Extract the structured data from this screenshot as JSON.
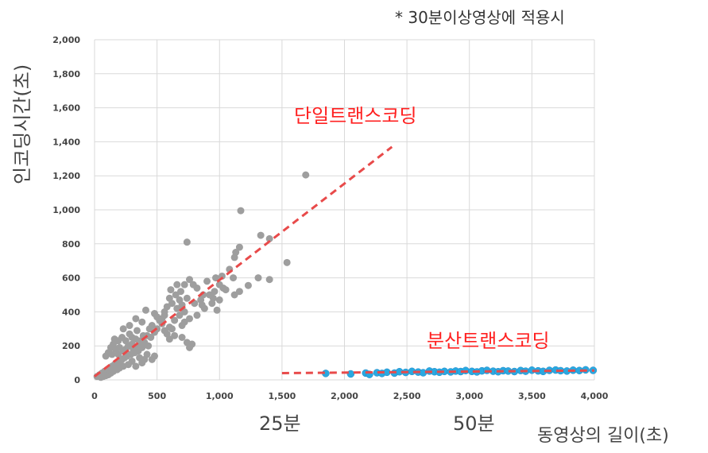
{
  "note": "* 30분이상영상에 적용시",
  "chart_data": {
    "type": "scatter",
    "ylabel": "인코딩시간(초)",
    "xlabel": "동영상의 길이(초)",
    "xlim": [
      0,
      4000
    ],
    "ylim": [
      0,
      2000
    ],
    "x_ticks": [
      "0",
      "500",
      "1,000",
      "1,500",
      "2,000",
      "2,500",
      "3,000",
      "3,500",
      "4,000"
    ],
    "y_ticks": [
      "0",
      "200",
      "400",
      "600",
      "800",
      "1,000",
      "1,200",
      "1,400",
      "1,600",
      "1,800",
      "2,000"
    ],
    "grid": true,
    "duration_markers": [
      {
        "label": "25분",
        "x": 1500
      },
      {
        "label": "50분",
        "x": 3000
      }
    ],
    "series": [
      {
        "name": "단일트랜스코딩",
        "color": "#9e9e9e",
        "points": [
          [
            1690,
            1205
          ],
          [
            1170,
            995
          ],
          [
            740,
            810
          ],
          [
            1330,
            850
          ],
          [
            1400,
            830
          ],
          [
            1130,
            750
          ],
          [
            1120,
            720
          ],
          [
            1160,
            780
          ],
          [
            1540,
            690
          ],
          [
            1080,
            650
          ],
          [
            1020,
            610
          ],
          [
            1110,
            600
          ],
          [
            1310,
            600
          ],
          [
            1400,
            590
          ],
          [
            1050,
            530
          ],
          [
            1230,
            555
          ],
          [
            1160,
            520
          ],
          [
            1120,
            500
          ],
          [
            970,
            600
          ],
          [
            760,
            590
          ],
          [
            790,
            560
          ],
          [
            900,
            580
          ],
          [
            820,
            540
          ],
          [
            870,
            500
          ],
          [
            960,
            520
          ],
          [
            740,
            480
          ],
          [
            680,
            470
          ],
          [
            650,
            500
          ],
          [
            600,
            480
          ],
          [
            620,
            450
          ],
          [
            580,
            430
          ],
          [
            560,
            400
          ],
          [
            410,
            410
          ],
          [
            480,
            390
          ],
          [
            500,
            370
          ],
          [
            520,
            350
          ],
          [
            540,
            330
          ],
          [
            600,
            310
          ],
          [
            620,
            300
          ],
          [
            700,
            320
          ],
          [
            720,
            340
          ],
          [
            760,
            360
          ],
          [
            820,
            380
          ],
          [
            880,
            420
          ],
          [
            940,
            450
          ],
          [
            1000,
            470
          ],
          [
            600,
            240
          ],
          [
            640,
            260
          ],
          [
            700,
            250
          ],
          [
            740,
            220
          ],
          [
            780,
            210
          ],
          [
            760,
            190
          ],
          [
            340,
            290
          ],
          [
            280,
            270
          ],
          [
            300,
            250
          ],
          [
            330,
            240
          ],
          [
            370,
            230
          ],
          [
            400,
            220
          ],
          [
            420,
            260
          ],
          [
            440,
            300
          ],
          [
            460,
            320
          ],
          [
            480,
            280
          ],
          [
            430,
            200
          ],
          [
            380,
            190
          ],
          [
            350,
            170
          ],
          [
            320,
            160
          ],
          [
            290,
            150
          ],
          [
            260,
            140
          ],
          [
            240,
            130
          ],
          [
            220,
            120
          ],
          [
            200,
            110
          ],
          [
            180,
            100
          ],
          [
            160,
            90
          ],
          [
            140,
            80
          ],
          [
            120,
            70
          ],
          [
            100,
            60
          ],
          [
            80,
            50
          ],
          [
            60,
            40
          ],
          [
            40,
            30
          ],
          [
            20,
            20
          ],
          [
            250,
            180
          ],
          [
            270,
            200
          ],
          [
            300,
            210
          ],
          [
            200,
            190
          ],
          [
            170,
            180
          ],
          [
            150,
            210
          ],
          [
            130,
            190
          ],
          [
            110,
            160
          ],
          [
            90,
            140
          ],
          [
            140,
            150
          ],
          [
            190,
            150
          ],
          [
            230,
            170
          ],
          [
            310,
            180
          ],
          [
            350,
            200
          ],
          [
            390,
            260
          ],
          [
            450,
            250
          ],
          [
            500,
            300
          ],
          [
            540,
            360
          ],
          [
            560,
            380
          ],
          [
            660,
            420
          ],
          [
            700,
            440
          ],
          [
            720,
            400
          ],
          [
            800,
            450
          ],
          [
            850,
            470
          ],
          [
            920,
            500
          ],
          [
            950,
            480
          ],
          [
            1000,
            560
          ],
          [
            1030,
            540
          ],
          [
            480,
            140
          ],
          [
            460,
            120
          ],
          [
            400,
            120
          ],
          [
            360,
            130
          ],
          [
            300,
            110
          ],
          [
            270,
            90
          ],
          [
            230,
            80
          ],
          [
            200,
            70
          ],
          [
            180,
            60
          ],
          [
            150,
            50
          ],
          [
            130,
            40
          ],
          [
            110,
            30
          ],
          [
            90,
            25
          ],
          [
            70,
            20
          ],
          [
            50,
            15
          ],
          [
            330,
            80
          ],
          [
            380,
            100
          ],
          [
            420,
            150
          ],
          [
            560,
            290
          ],
          [
            580,
            270
          ],
          [
            640,
            350
          ],
          [
            680,
            380
          ],
          [
            250,
            230
          ],
          [
            220,
            250
          ],
          [
            190,
            230
          ],
          [
            160,
            240
          ],
          [
            280,
            320
          ],
          [
            230,
            300
          ],
          [
            330,
            360
          ],
          [
            380,
            340
          ],
          [
            860,
            440
          ],
          [
            980,
            410
          ],
          [
            660,
            560
          ],
          [
            720,
            560
          ],
          [
            610,
            530
          ],
          [
            690,
            520
          ]
        ]
      },
      {
        "name": "분산트랜스코딩",
        "color": "#2aa8e0",
        "points": [
          [
            1850,
            38
          ],
          [
            2050,
            35
          ],
          [
            2170,
            40
          ],
          [
            2200,
            32
          ],
          [
            2260,
            42
          ],
          [
            2300,
            38
          ],
          [
            2340,
            45
          ],
          [
            2400,
            40
          ],
          [
            2440,
            48
          ],
          [
            2490,
            44
          ],
          [
            2540,
            50
          ],
          [
            2590,
            46
          ],
          [
            2630,
            42
          ],
          [
            2680,
            52
          ],
          [
            2720,
            48
          ],
          [
            2760,
            45
          ],
          [
            2800,
            50
          ],
          [
            2850,
            47
          ],
          [
            2890,
            52
          ],
          [
            2930,
            49
          ],
          [
            2970,
            55
          ],
          [
            3020,
            50
          ],
          [
            3060,
            47
          ],
          [
            3100,
            53
          ],
          [
            3140,
            56
          ],
          [
            3190,
            51
          ],
          [
            3230,
            48
          ],
          [
            3270,
            54
          ],
          [
            3310,
            52
          ],
          [
            3360,
            49
          ],
          [
            3410,
            55
          ],
          [
            3450,
            51
          ],
          [
            3500,
            57
          ],
          [
            3550,
            53
          ],
          [
            3590,
            50
          ],
          [
            3640,
            56
          ],
          [
            3690,
            58
          ],
          [
            3730,
            54
          ],
          [
            3780,
            52
          ],
          [
            3830,
            57
          ],
          [
            3880,
            55
          ],
          [
            3930,
            59
          ],
          [
            3990,
            56
          ]
        ]
      }
    ],
    "trendlines": [
      {
        "name": "단일트랜스코딩",
        "color": "#e84a4a",
        "from": [
          0,
          20
        ],
        "to": [
          2380,
          1370
        ]
      },
      {
        "name": "분산트랜스코딩",
        "color": "#e84a4a",
        "from": [
          1500,
          40
        ],
        "to": [
          4000,
          55
        ]
      }
    ]
  }
}
